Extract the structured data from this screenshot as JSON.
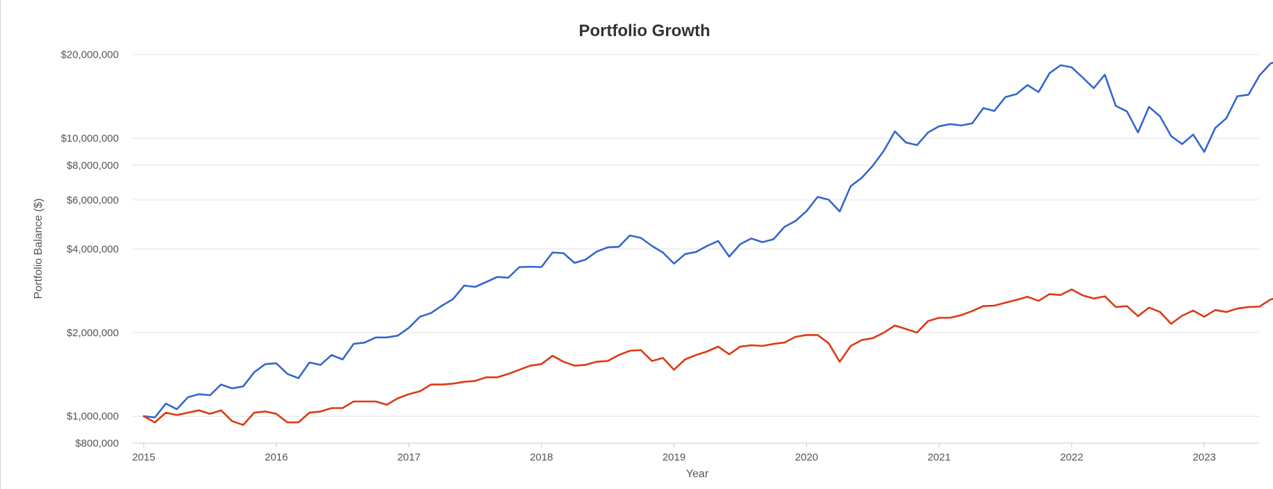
{
  "chart_data": {
    "type": "line",
    "title": "Portfolio Growth",
    "xlabel": "Year",
    "ylabel": "Portfolio Balance ($)",
    "y_scale": "log",
    "ylim": [
      800000,
      22000000
    ],
    "xlim": [
      2015,
      2023.65
    ],
    "grid": true,
    "legend": "none",
    "x_ticks": [
      {
        "value": 2015,
        "label": "2015"
      },
      {
        "value": 2016,
        "label": "2016"
      },
      {
        "value": 2017,
        "label": "2017"
      },
      {
        "value": 2018,
        "label": "2018"
      },
      {
        "value": 2019,
        "label": "2019"
      },
      {
        "value": 2020,
        "label": "2020"
      },
      {
        "value": 2021,
        "label": "2021"
      },
      {
        "value": 2022,
        "label": "2022"
      },
      {
        "value": 2023,
        "label": "2023"
      }
    ],
    "y_ticks": [
      {
        "value": 800000,
        "label": "$800,000"
      },
      {
        "value": 1000000,
        "label": "$1,000,000"
      },
      {
        "value": 2000000,
        "label": "$2,000,000"
      },
      {
        "value": 4000000,
        "label": "$4,000,000"
      },
      {
        "value": 6000000,
        "label": "$6,000,000"
      },
      {
        "value": 8000000,
        "label": "$8,000,000"
      },
      {
        "value": 10000000,
        "label": "$10,000,000"
      },
      {
        "value": 20000000,
        "label": "$20,000,000"
      }
    ],
    "x_start": 2015,
    "x_step": 0.08333333,
    "series": [
      {
        "color": "#3366cc",
        "values": [
          1000000,
          990000,
          1110000,
          1060000,
          1170000,
          1200000,
          1190000,
          1300000,
          1260000,
          1280000,
          1440000,
          1540000,
          1550000,
          1420000,
          1370000,
          1560000,
          1530000,
          1660000,
          1600000,
          1820000,
          1840000,
          1920000,
          1920000,
          1950000,
          2080000,
          2280000,
          2350000,
          2500000,
          2640000,
          2950000,
          2920000,
          3040000,
          3170000,
          3150000,
          3440000,
          3450000,
          3440000,
          3880000,
          3860000,
          3560000,
          3660000,
          3910000,
          4050000,
          4070000,
          4470000,
          4380000,
          4100000,
          3880000,
          3540000,
          3830000,
          3900000,
          4100000,
          4270000,
          3750000,
          4160000,
          4360000,
          4230000,
          4330000,
          4800000,
          5040000,
          5470000,
          6150000,
          6010000,
          5450000,
          6730000,
          7210000,
          7970000,
          9020000,
          10590000,
          9650000,
          9450000,
          10490000,
          11040000,
          11240000,
          11120000,
          11320000,
          12840000,
          12540000,
          14060000,
          14410000,
          15540000,
          14660000,
          17150000,
          18310000,
          18000000,
          16530000,
          15140000,
          16920000,
          13070000,
          12490000,
          10490000,
          12970000,
          11980000,
          10180000,
          9530000,
          10310000,
          8930000,
          10900000,
          11800000,
          14170000,
          14340000,
          16810000,
          18580000,
          19100000
        ]
      },
      {
        "color": "#dc3912",
        "values": [
          1000000,
          950000,
          1030000,
          1010000,
          1030000,
          1050000,
          1020000,
          1050000,
          960000,
          930000,
          1030000,
          1040000,
          1020000,
          950000,
          950000,
          1030000,
          1040000,
          1070000,
          1070000,
          1130000,
          1130000,
          1130000,
          1100000,
          1160000,
          1200000,
          1230000,
          1300000,
          1300000,
          1310000,
          1330000,
          1340000,
          1380000,
          1380000,
          1420000,
          1470000,
          1520000,
          1540000,
          1650000,
          1570000,
          1520000,
          1530000,
          1570000,
          1580000,
          1660000,
          1720000,
          1730000,
          1580000,
          1620000,
          1470000,
          1600000,
          1660000,
          1710000,
          1780000,
          1670000,
          1780000,
          1800000,
          1790000,
          1820000,
          1840000,
          1930000,
          1960000,
          1960000,
          1830000,
          1570000,
          1790000,
          1880000,
          1910000,
          2000000,
          2120000,
          2060000,
          2000000,
          2200000,
          2260000,
          2260000,
          2310000,
          2390000,
          2490000,
          2500000,
          2560000,
          2620000,
          2690000,
          2600000,
          2750000,
          2730000,
          2860000,
          2720000,
          2650000,
          2700000,
          2470000,
          2490000,
          2290000,
          2460000,
          2370000,
          2150000,
          2300000,
          2400000,
          2280000,
          2410000,
          2370000,
          2440000,
          2470000,
          2480000,
          2630000,
          2700000
        ]
      }
    ]
  }
}
